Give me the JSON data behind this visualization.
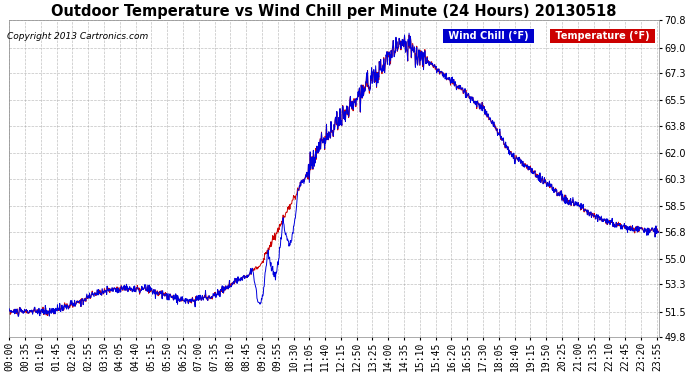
{
  "title": "Outdoor Temperature vs Wind Chill per Minute (24 Hours) 20130518",
  "copyright": "Copyright 2013 Cartronics.com",
  "legend_wind_chill": "Wind Chill (°F)",
  "legend_temp": "Temperature (°F)",
  "wind_chill_color": "#0000dd",
  "temp_color": "#cc0000",
  "legend_wind_chill_bg": "#0000cc",
  "legend_temp_bg": "#cc0000",
  "background_color": "#ffffff",
  "plot_bg_color": "#ffffff",
  "grid_color": "#999999",
  "ymin": 49.8,
  "ymax": 70.8,
  "yticks": [
    49.8,
    51.5,
    53.3,
    55.0,
    56.8,
    58.5,
    60.3,
    62.0,
    63.8,
    65.5,
    67.3,
    69.0,
    70.8
  ],
  "title_fontsize": 10.5,
  "axis_fontsize": 7,
  "copyright_fontsize": 6.5
}
